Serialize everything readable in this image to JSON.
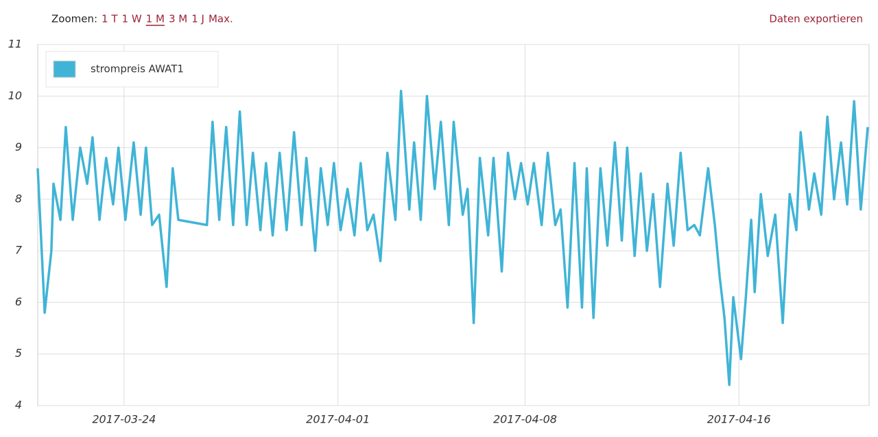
{
  "toolbar": {
    "zoom_label": "Zoomen:",
    "zoom_options": [
      "1 T",
      "1 W",
      "1 M",
      "3 M",
      "1 J",
      "Max."
    ],
    "active_zoom": 2,
    "export": "Daten exportieren"
  },
  "chart_data": {
    "type": "line",
    "x": [
      79.77,
      80.03,
      80.28,
      80.36,
      80.62,
      80.82,
      81.08,
      81.36,
      81.62,
      81.82,
      82.08,
      82.33,
      82.59,
      82.79,
      83.05,
      83.36,
      83.62,
      83.82,
      84.05,
      84.31,
      84.59,
      84.82,
      85.03,
      86.1,
      86.31,
      86.56,
      86.82,
      87.08,
      87.33,
      87.59,
      87.82,
      88.1,
      88.31,
      88.56,
      88.82,
      89.08,
      89.36,
      89.64,
      89.82,
      90.15,
      90.36,
      90.62,
      90.85,
      91.1,
      91.36,
      91.62,
      91.85,
      92.1,
      92.33,
      92.59,
      92.85,
      93.15,
      93.36,
      93.67,
      93.85,
      94.1,
      94.33,
      94.62,
      94.85,
      95.15,
      95.33,
      95.67,
      95.85,
      96.08,
      96.31,
      96.62,
      96.82,
      97.13,
      97.36,
      97.62,
      97.85,
      98.1,
      98.33,
      98.62,
      98.85,
      99.13,
      99.33,
      99.59,
      99.85,
      100.13,
      100.31,
      100.56,
      100.82,
      101.08,
      101.36,
      101.62,
      101.82,
      102.1,
      102.33,
      102.56,
      102.79,
      103.05,
      103.33,
      103.56,
      103.82,
      104.08,
      104.33,
      104.54,
      104.85,
      105.1,
      105.28,
      105.46,
      105.64,
      105.79,
      106.08,
      106.26,
      106.46,
      106.59,
      106.82,
      107.08,
      107.36,
      107.64,
      107.9,
      108.15,
      108.31,
      108.62,
      108.82,
      109.08,
      109.31,
      109.56,
      109.82,
      110.05,
      110.31,
      110.56,
      110.82
    ],
    "series": [
      {
        "name": "strompreis AWAT1",
        "color": "#40b4d6",
        "values": [
          8.6,
          5.8,
          7.0,
          8.3,
          7.6,
          9.4,
          7.6,
          9.0,
          8.3,
          9.2,
          7.6,
          8.8,
          7.9,
          9.0,
          7.6,
          9.1,
          7.7,
          9.0,
          7.5,
          7.7,
          6.3,
          8.6,
          7.6,
          7.5,
          9.5,
          7.6,
          9.4,
          7.5,
          9.7,
          7.5,
          8.9,
          7.4,
          8.7,
          7.3,
          8.9,
          7.4,
          9.3,
          7.5,
          8.8,
          7.0,
          8.6,
          7.5,
          8.7,
          7.4,
          8.2,
          7.3,
          8.7,
          7.4,
          7.7,
          6.8,
          8.9,
          7.6,
          10.1,
          7.8,
          9.1,
          7.6,
          10.0,
          8.2,
          9.5,
          7.5,
          9.5,
          7.7,
          8.2,
          5.6,
          8.8,
          7.3,
          8.8,
          6.6,
          8.9,
          8.0,
          8.7,
          7.9,
          8.7,
          7.5,
          8.9,
          7.5,
          7.8,
          5.9,
          8.7,
          5.9,
          8.6,
          5.7,
          8.6,
          7.1,
          9.1,
          7.2,
          9.0,
          6.9,
          8.5,
          7.0,
          8.1,
          6.3,
          8.3,
          7.1,
          8.9,
          7.4,
          7.5,
          7.3,
          8.6,
          7.5,
          6.5,
          5.7,
          4.4,
          6.1,
          4.9,
          6.1,
          7.6,
          6.2,
          8.1,
          6.9,
          7.7,
          5.6,
          8.1,
          7.4,
          9.3,
          7.8,
          8.5,
          7.7,
          9.6,
          8.0,
          9.1,
          7.9,
          9.9,
          7.8,
          9.4
        ]
      }
    ],
    "xlim": [
      79.77,
      110.87
    ],
    "xticks": [
      {
        "value": 83,
        "label": "2017-03-24"
      },
      {
        "value": 91,
        "label": "2017-04-01"
      },
      {
        "value": 98,
        "label": "2017-04-08"
      },
      {
        "value": 106,
        "label": "2017-04-16"
      }
    ],
    "ylim": [
      4,
      11
    ],
    "yticks": [
      4,
      5,
      6,
      7,
      8,
      9,
      10,
      11
    ],
    "grid": true,
    "legend": "top-left"
  }
}
